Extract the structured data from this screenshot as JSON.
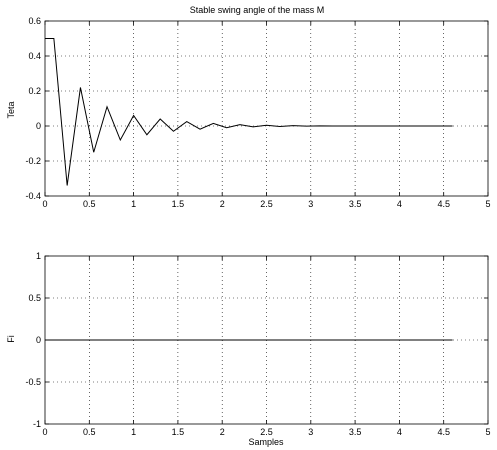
{
  "chart_data": [
    {
      "type": "line",
      "title": "Stable swing angle of the mass M",
      "xlabel": "",
      "ylabel": "Teta",
      "xlim": [
        0,
        5
      ],
      "ylim": [
        -0.4,
        0.6
      ],
      "grid": true,
      "x_ticks": [
        "0",
        "0.5",
        "1",
        "1.5",
        "2",
        "2.5",
        "3",
        "3.5",
        "4",
        "4.5",
        "5"
      ],
      "y_ticks": [
        "-0.4",
        "-0.2",
        "0",
        "0.2",
        "0.4",
        "0.6"
      ],
      "x_tick_values": [
        0,
        0.5,
        1,
        1.5,
        2,
        2.5,
        3,
        3.5,
        4,
        4.5,
        5
      ],
      "y_tick_values": [
        -0.4,
        -0.2,
        0,
        0.2,
        0.4,
        0.6
      ],
      "series": [
        {
          "x": [
            0,
            0.1,
            0.25,
            0.4,
            0.55,
            0.7,
            0.85,
            1.0,
            1.15,
            1.3,
            1.45,
            1.6,
            1.75,
            1.9,
            2.05,
            2.2,
            2.35,
            2.5,
            2.65,
            2.8,
            2.95,
            3.1,
            3.25,
            3.4,
            3.55,
            3.7,
            3.85,
            4.0,
            4.15,
            4.3,
            4.45,
            4.6
          ],
          "y": [
            0.5,
            0.5,
            -0.34,
            0.22,
            -0.15,
            0.11,
            -0.08,
            0.06,
            -0.05,
            0.04,
            -0.03,
            0.025,
            -0.018,
            0.015,
            -0.01,
            0.008,
            -0.005,
            0.004,
            -0.003,
            0.002,
            -0.001,
            0.001,
            0.0,
            0.0,
            0.0,
            0.0,
            0.0,
            0.0,
            0.0,
            0.0,
            0.0,
            0.0
          ]
        }
      ]
    },
    {
      "type": "line",
      "title": "",
      "xlabel": "Samples",
      "ylabel": "Fi",
      "xlim": [
        0,
        5
      ],
      "ylim": [
        -1,
        1
      ],
      "grid": true,
      "x_ticks": [
        "0",
        "0.5",
        "1",
        "1.5",
        "2",
        "2.5",
        "3",
        "3.5",
        "4",
        "4.5",
        "5"
      ],
      "y_ticks": [
        "-1",
        "-0.5",
        "0",
        "0.5",
        "1"
      ],
      "x_tick_values": [
        0,
        0.5,
        1,
        1.5,
        2,
        2.5,
        3,
        3.5,
        4,
        4.5,
        5
      ],
      "y_tick_values": [
        -1,
        -0.5,
        0,
        0.5,
        1
      ],
      "series": [
        {
          "x": [
            0,
            4.6
          ],
          "y": [
            0,
            0
          ]
        }
      ]
    }
  ]
}
